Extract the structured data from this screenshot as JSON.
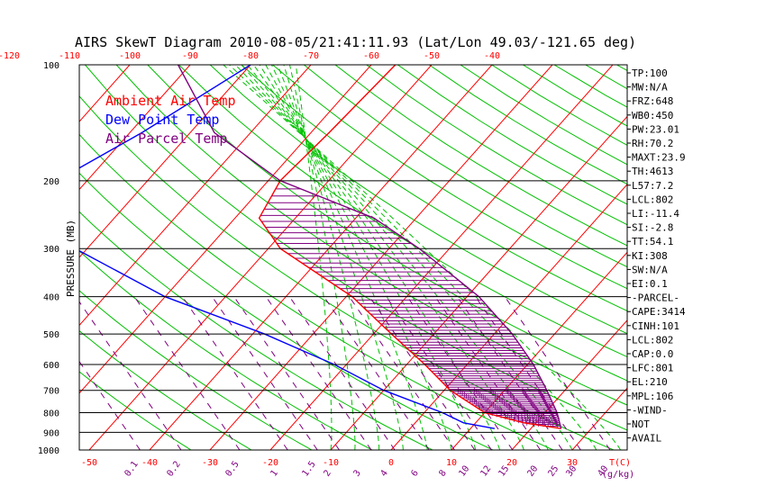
{
  "chart_data": {
    "type": "line",
    "title": "AIRS SkewT Diagram 2010-08-05/21:41:11.93 (Lat/Lon 49.03/-121.65 deg)",
    "ylabel": "PRESSURE (MB)",
    "y_scale": "log",
    "ylim": [
      1000,
      100
    ],
    "xlim": [
      -50,
      40
    ],
    "pressure_ticks": [
      100,
      200,
      300,
      400,
      500,
      600,
      700,
      800,
      900,
      1000
    ],
    "bottom_temp_ticks": [
      -50,
      -40,
      -30,
      -20,
      -10,
      0,
      10,
      20,
      30
    ],
    "bottom_unit_label": "T(C)",
    "top_temp_ticks": [
      -120,
      -110,
      -100,
      -90,
      -80,
      -70,
      -60,
      -50,
      -40
    ],
    "mixing_ratio_labels": [
      "0.1",
      "0.2",
      "0.5",
      "1",
      "1.5",
      "2",
      "3",
      "4",
      "6",
      "8",
      "10",
      "12",
      "15",
      "20",
      "25",
      "30",
      "40"
    ],
    "mixing_ratio_unit": "(g/kg)",
    "grid": true,
    "legend": {
      "placement": "top-left",
      "entries": [
        {
          "label": "Ambient Air Temp",
          "color": "#ff0000"
        },
        {
          "label": "Dew Point Temp",
          "color": "#0000ff"
        },
        {
          "label": "Air Parcel Temp",
          "color": "#800080"
        }
      ]
    },
    "colors": {
      "isotherm": "#ff0000",
      "dry_adiabat": "#00c000",
      "moist_adiabat": "#00c000",
      "mixing_ratio": "#800080",
      "cape_hatch": "#800080"
    },
    "series": [
      {
        "name": "Ambient Air Temp",
        "pressure": [
          100,
          150,
          200,
          250,
          300,
          400,
          500,
          600,
          700,
          800,
          850,
          880
        ],
        "values": [
          -56,
          -57,
          -58,
          -56,
          -48,
          -29,
          -17,
          -7,
          1,
          10,
          18,
          25
        ]
      },
      {
        "name": "Dew Point Temp",
        "pressure": [
          100,
          150,
          200,
          250,
          300,
          400,
          500,
          600,
          700,
          800,
          850,
          880
        ],
        "values": [
          -80,
          -88,
          -95,
          -90,
          -82,
          -60,
          -38,
          -22,
          -10,
          3,
          8,
          14
        ]
      },
      {
        "name": "Air Parcel Temp",
        "pressure": [
          100,
          150,
          200,
          250,
          300,
          400,
          500,
          600,
          700,
          800,
          880
        ],
        "values": [
          -92,
          -76,
          -58,
          -37,
          -25,
          -8,
          3,
          11,
          17,
          22,
          25
        ]
      }
    ]
  },
  "indices": [
    "TP:100",
    "MW:N/A",
    "FRZ:648",
    "WB0:450",
    "PW:23.01",
    "RH:70.2",
    "MAXT:23.9",
    "TH:4613",
    "L57:7.2",
    "LCL:802",
    "LI:-11.4",
    "SI:-2.8",
    "TT:54.1",
    "KI:308",
    "SW:N/A",
    "EI:0.1",
    "-PARCEL-",
    "CAPE:3414",
    "CINH:101",
    "LCL:802",
    "CAP:0.0",
    "LFC:801",
    "EL:210",
    "MPL:106",
    "-WIND-",
    "NOT",
    "AVAIL"
  ]
}
